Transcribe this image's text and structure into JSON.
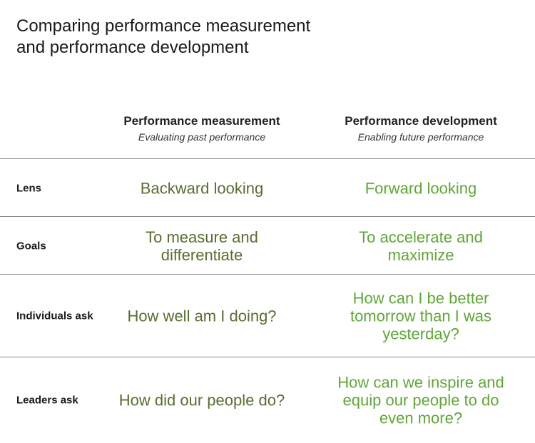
{
  "title": "Comparing performance measurement and performance development",
  "columns": [
    {
      "heading": "Performance measurement",
      "subheading": "Evaluating past performance"
    },
    {
      "heading": "Performance development",
      "subheading": "Enabling future performance"
    }
  ],
  "rows": [
    {
      "label": "Lens",
      "measurement": "Backward looking",
      "development": "Forward looking"
    },
    {
      "label": "Goals",
      "measurement": "To measure and differentiate",
      "development": "To accelerate and maximize"
    },
    {
      "label": "Individuals ask",
      "measurement": "How well am I doing?",
      "development": "How can I be better tomorrow than I was yesterday?"
    },
    {
      "label": "Leaders ask",
      "measurement": "How did our people do?",
      "development": "How can we inspire and equip our people to do even more?"
    }
  ],
  "colors": {
    "measurement": "#586d2f",
    "development": "#5ea737",
    "divider": "#8a8a8a"
  }
}
